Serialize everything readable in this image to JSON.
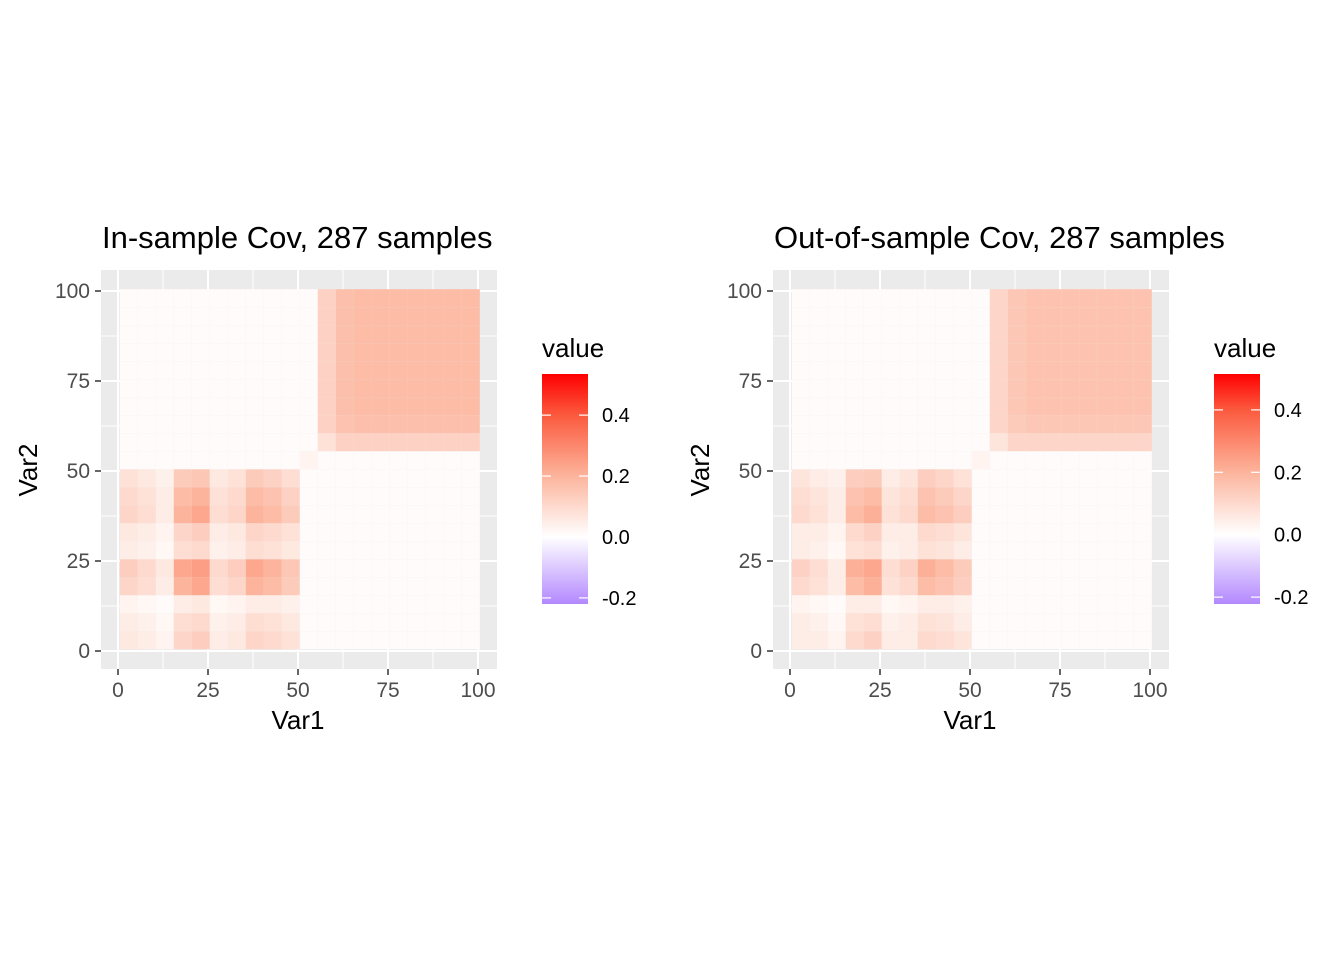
{
  "chart_data": [
    {
      "type": "heatmap",
      "title": "In-sample Cov, 287 samples",
      "xlabel": "Var1",
      "ylabel": "Var2",
      "xlim": [
        0,
        100
      ],
      "ylim": [
        0,
        100
      ],
      "x_ticks": [
        "0",
        "25",
        "50",
        "75",
        "100"
      ],
      "y_ticks": [
        "0",
        "25",
        "50",
        "75",
        "100"
      ],
      "grid": true,
      "legend": {
        "title": "value",
        "position": "right",
        "ticks": [
          "0.4",
          "0.2",
          "0.0",
          "-0.2"
        ],
        "range": [
          -0.22,
          0.535
        ]
      },
      "colors": {
        "low": "#b388ff",
        "mid": "#ffffff",
        "high": "#ff0000"
      },
      "bin_size": 5,
      "bin_starts": [
        0,
        5,
        10,
        15,
        20,
        25,
        30,
        35,
        40,
        45,
        50,
        55,
        60,
        65,
        70,
        75,
        80,
        85,
        90,
        95
      ],
      "values": [
        [
          0.06,
          0.05,
          0.03,
          0.11,
          0.13,
          0.05,
          0.06,
          0.11,
          0.1,
          0.08,
          0.01,
          0.01,
          0.01,
          0.01,
          0.01,
          0.01,
          0.01,
          0.01,
          0.01,
          0.01
        ],
        [
          0.05,
          0.04,
          0.02,
          0.09,
          0.1,
          0.04,
          0.05,
          0.09,
          0.08,
          0.06,
          0.01,
          0.01,
          0.01,
          0.01,
          0.01,
          0.01,
          0.01,
          0.01,
          0.01,
          0.01
        ],
        [
          0.03,
          0.02,
          0.01,
          0.05,
          0.06,
          0.02,
          0.03,
          0.05,
          0.05,
          0.04,
          0.01,
          0.01,
          0.01,
          0.01,
          0.01,
          0.01,
          0.01,
          0.01,
          0.01,
          0.01
        ],
        [
          0.11,
          0.09,
          0.05,
          0.2,
          0.23,
          0.09,
          0.11,
          0.2,
          0.18,
          0.14,
          0.01,
          0.01,
          0.01,
          0.01,
          0.01,
          0.01,
          0.01,
          0.01,
          0.01,
          0.01
        ],
        [
          0.13,
          0.1,
          0.06,
          0.23,
          0.25,
          0.1,
          0.13,
          0.23,
          0.2,
          0.15,
          0.01,
          0.01,
          0.01,
          0.01,
          0.01,
          0.01,
          0.01,
          0.01,
          0.01,
          0.01
        ],
        [
          0.05,
          0.04,
          0.02,
          0.09,
          0.1,
          0.04,
          0.05,
          0.09,
          0.08,
          0.06,
          0.01,
          0.01,
          0.01,
          0.01,
          0.01,
          0.01,
          0.01,
          0.01,
          0.01,
          0.01
        ],
        [
          0.06,
          0.05,
          0.03,
          0.11,
          0.13,
          0.05,
          0.06,
          0.11,
          0.1,
          0.08,
          0.01,
          0.01,
          0.01,
          0.01,
          0.01,
          0.01,
          0.01,
          0.01,
          0.01,
          0.01
        ],
        [
          0.11,
          0.09,
          0.05,
          0.2,
          0.23,
          0.09,
          0.11,
          0.2,
          0.18,
          0.14,
          0.01,
          0.01,
          0.01,
          0.01,
          0.01,
          0.01,
          0.01,
          0.01,
          0.01,
          0.01
        ],
        [
          0.1,
          0.08,
          0.05,
          0.18,
          0.2,
          0.08,
          0.1,
          0.18,
          0.16,
          0.12,
          0.01,
          0.01,
          0.01,
          0.01,
          0.01,
          0.01,
          0.01,
          0.01,
          0.01,
          0.01
        ],
        [
          0.08,
          0.06,
          0.04,
          0.14,
          0.15,
          0.06,
          0.08,
          0.14,
          0.12,
          0.09,
          0.01,
          0.01,
          0.01,
          0.01,
          0.01,
          0.01,
          0.01,
          0.01,
          0.01,
          0.01
        ],
        [
          0.01,
          0.01,
          0.01,
          0.01,
          0.01,
          0.01,
          0.01,
          0.01,
          0.01,
          0.01,
          0.03,
          0.01,
          0.01,
          0.01,
          0.01,
          0.01,
          0.01,
          0.01,
          0.01,
          0.01
        ],
        [
          0.01,
          0.01,
          0.01,
          0.01,
          0.01,
          0.01,
          0.01,
          0.01,
          0.01,
          0.01,
          0.01,
          0.08,
          0.12,
          0.12,
          0.12,
          0.12,
          0.12,
          0.12,
          0.12,
          0.12
        ],
        [
          0.01,
          0.01,
          0.01,
          0.01,
          0.01,
          0.01,
          0.01,
          0.01,
          0.01,
          0.01,
          0.01,
          0.12,
          0.16,
          0.17,
          0.17,
          0.17,
          0.17,
          0.17,
          0.17,
          0.17
        ],
        [
          0.01,
          0.01,
          0.01,
          0.01,
          0.01,
          0.01,
          0.01,
          0.01,
          0.01,
          0.01,
          0.01,
          0.12,
          0.17,
          0.18,
          0.18,
          0.18,
          0.18,
          0.18,
          0.18,
          0.18
        ],
        [
          0.01,
          0.01,
          0.01,
          0.01,
          0.01,
          0.01,
          0.01,
          0.01,
          0.01,
          0.01,
          0.01,
          0.12,
          0.17,
          0.18,
          0.18,
          0.18,
          0.18,
          0.18,
          0.18,
          0.18
        ],
        [
          0.01,
          0.01,
          0.01,
          0.01,
          0.01,
          0.01,
          0.01,
          0.01,
          0.01,
          0.01,
          0.01,
          0.12,
          0.17,
          0.18,
          0.18,
          0.18,
          0.18,
          0.18,
          0.18,
          0.18
        ],
        [
          0.01,
          0.01,
          0.01,
          0.01,
          0.01,
          0.01,
          0.01,
          0.01,
          0.01,
          0.01,
          0.01,
          0.12,
          0.17,
          0.18,
          0.18,
          0.18,
          0.18,
          0.18,
          0.18,
          0.18
        ],
        [
          0.01,
          0.01,
          0.01,
          0.01,
          0.01,
          0.01,
          0.01,
          0.01,
          0.01,
          0.01,
          0.01,
          0.12,
          0.17,
          0.18,
          0.18,
          0.18,
          0.18,
          0.18,
          0.18,
          0.18
        ],
        [
          0.01,
          0.01,
          0.01,
          0.01,
          0.01,
          0.01,
          0.01,
          0.01,
          0.01,
          0.01,
          0.01,
          0.12,
          0.17,
          0.18,
          0.18,
          0.18,
          0.18,
          0.18,
          0.18,
          0.18
        ],
        [
          0.01,
          0.01,
          0.01,
          0.01,
          0.01,
          0.01,
          0.01,
          0.01,
          0.01,
          0.01,
          0.01,
          0.12,
          0.17,
          0.18,
          0.18,
          0.18,
          0.18,
          0.18,
          0.18,
          0.18
        ]
      ]
    },
    {
      "type": "heatmap",
      "title": "Out-of-sample Cov, 287 samples",
      "xlabel": "Var1",
      "ylabel": "Var2",
      "xlim": [
        0,
        100
      ],
      "ylim": [
        0,
        100
      ],
      "x_ticks": [
        "0",
        "25",
        "50",
        "75",
        "100"
      ],
      "y_ticks": [
        "0",
        "25",
        "50",
        "75",
        "100"
      ],
      "grid": true,
      "legend": {
        "title": "value",
        "position": "right",
        "ticks": [
          "0.4",
          "0.2",
          "0.0",
          "-0.2"
        ],
        "range": [
          -0.222,
          0.515
        ]
      },
      "colors": {
        "low": "#b388ff",
        "mid": "#ffffff",
        "high": "#ff0000"
      },
      "bin_size": 5,
      "bin_starts": [
        0,
        5,
        10,
        15,
        20,
        25,
        30,
        35,
        40,
        45,
        50,
        55,
        60,
        65,
        70,
        75,
        80,
        85,
        90,
        95
      ],
      "values": [
        [
          0.05,
          0.05,
          0.03,
          0.1,
          0.12,
          0.05,
          0.05,
          0.1,
          0.09,
          0.07,
          0.01,
          0.01,
          0.01,
          0.01,
          0.01,
          0.01,
          0.01,
          0.01,
          0.01,
          0.01
        ],
        [
          0.05,
          0.04,
          0.02,
          0.08,
          0.09,
          0.04,
          0.05,
          0.08,
          0.07,
          0.05,
          0.01,
          0.01,
          0.01,
          0.01,
          0.01,
          0.01,
          0.01,
          0.01,
          0.01,
          0.01
        ],
        [
          0.03,
          0.02,
          0.01,
          0.05,
          0.05,
          0.02,
          0.03,
          0.05,
          0.05,
          0.04,
          0.01,
          0.01,
          0.01,
          0.01,
          0.01,
          0.01,
          0.01,
          0.01,
          0.01,
          0.01
        ],
        [
          0.1,
          0.08,
          0.05,
          0.18,
          0.21,
          0.08,
          0.1,
          0.18,
          0.16,
          0.13,
          0.01,
          0.01,
          0.01,
          0.01,
          0.01,
          0.01,
          0.01,
          0.01,
          0.01,
          0.01
        ],
        [
          0.12,
          0.09,
          0.05,
          0.21,
          0.23,
          0.09,
          0.12,
          0.21,
          0.18,
          0.14,
          0.01,
          0.01,
          0.01,
          0.01,
          0.01,
          0.01,
          0.01,
          0.01,
          0.01,
          0.01
        ],
        [
          0.05,
          0.04,
          0.02,
          0.08,
          0.09,
          0.04,
          0.05,
          0.08,
          0.07,
          0.05,
          0.01,
          0.01,
          0.01,
          0.01,
          0.01,
          0.01,
          0.01,
          0.01,
          0.01,
          0.01
        ],
        [
          0.05,
          0.05,
          0.03,
          0.1,
          0.12,
          0.05,
          0.05,
          0.1,
          0.09,
          0.07,
          0.01,
          0.01,
          0.01,
          0.01,
          0.01,
          0.01,
          0.01,
          0.01,
          0.01,
          0.01
        ],
        [
          0.1,
          0.08,
          0.05,
          0.18,
          0.21,
          0.08,
          0.1,
          0.18,
          0.16,
          0.13,
          0.01,
          0.01,
          0.01,
          0.01,
          0.01,
          0.01,
          0.01,
          0.01,
          0.01,
          0.01
        ],
        [
          0.09,
          0.07,
          0.05,
          0.16,
          0.18,
          0.07,
          0.09,
          0.16,
          0.14,
          0.11,
          0.01,
          0.01,
          0.01,
          0.01,
          0.01,
          0.01,
          0.01,
          0.01,
          0.01,
          0.01
        ],
        [
          0.07,
          0.05,
          0.04,
          0.13,
          0.14,
          0.05,
          0.07,
          0.13,
          0.11,
          0.08,
          0.01,
          0.01,
          0.01,
          0.01,
          0.01,
          0.01,
          0.01,
          0.01,
          0.01,
          0.01
        ],
        [
          0.01,
          0.01,
          0.01,
          0.01,
          0.01,
          0.01,
          0.01,
          0.01,
          0.01,
          0.01,
          0.03,
          0.01,
          0.01,
          0.01,
          0.01,
          0.01,
          0.01,
          0.01,
          0.01,
          0.01
        ],
        [
          0.01,
          0.01,
          0.01,
          0.01,
          0.01,
          0.01,
          0.01,
          0.01,
          0.01,
          0.01,
          0.01,
          0.07,
          0.11,
          0.11,
          0.11,
          0.11,
          0.11,
          0.11,
          0.11,
          0.11
        ],
        [
          0.01,
          0.01,
          0.01,
          0.01,
          0.01,
          0.01,
          0.01,
          0.01,
          0.01,
          0.01,
          0.01,
          0.11,
          0.14,
          0.15,
          0.15,
          0.15,
          0.15,
          0.15,
          0.15,
          0.15
        ],
        [
          0.01,
          0.01,
          0.01,
          0.01,
          0.01,
          0.01,
          0.01,
          0.01,
          0.01,
          0.01,
          0.01,
          0.11,
          0.15,
          0.16,
          0.16,
          0.16,
          0.16,
          0.16,
          0.16,
          0.16
        ],
        [
          0.01,
          0.01,
          0.01,
          0.01,
          0.01,
          0.01,
          0.01,
          0.01,
          0.01,
          0.01,
          0.01,
          0.11,
          0.15,
          0.16,
          0.16,
          0.16,
          0.16,
          0.16,
          0.16,
          0.16
        ],
        [
          0.01,
          0.01,
          0.01,
          0.01,
          0.01,
          0.01,
          0.01,
          0.01,
          0.01,
          0.01,
          0.01,
          0.11,
          0.15,
          0.16,
          0.16,
          0.16,
          0.16,
          0.16,
          0.16,
          0.16
        ],
        [
          0.01,
          0.01,
          0.01,
          0.01,
          0.01,
          0.01,
          0.01,
          0.01,
          0.01,
          0.01,
          0.01,
          0.11,
          0.15,
          0.16,
          0.16,
          0.16,
          0.16,
          0.16,
          0.16,
          0.16
        ],
        [
          0.01,
          0.01,
          0.01,
          0.01,
          0.01,
          0.01,
          0.01,
          0.01,
          0.01,
          0.01,
          0.01,
          0.11,
          0.15,
          0.16,
          0.16,
          0.16,
          0.16,
          0.16,
          0.16,
          0.16
        ],
        [
          0.01,
          0.01,
          0.01,
          0.01,
          0.01,
          0.01,
          0.01,
          0.01,
          0.01,
          0.01,
          0.01,
          0.11,
          0.15,
          0.16,
          0.16,
          0.16,
          0.16,
          0.16,
          0.16,
          0.16
        ],
        [
          0.01,
          0.01,
          0.01,
          0.01,
          0.01,
          0.01,
          0.01,
          0.01,
          0.01,
          0.01,
          0.01,
          0.11,
          0.15,
          0.16,
          0.16,
          0.16,
          0.16,
          0.16,
          0.16,
          0.16
        ]
      ]
    }
  ]
}
